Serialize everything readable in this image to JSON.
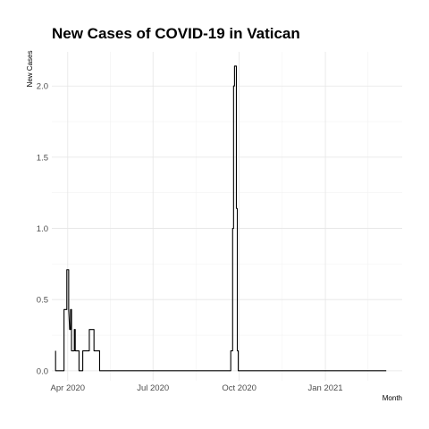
{
  "chart_data": {
    "type": "line",
    "title": "New Cases of COVID-19 in Vatican",
    "xlabel": "Month",
    "ylabel": "New Cases",
    "x_ticks": [
      {
        "label": "Apr 2020",
        "day": 0
      },
      {
        "label": "Jul 2020",
        "day": 91
      },
      {
        "label": "Oct 2020",
        "day": 183
      },
      {
        "label": "Jan 2021",
        "day": 275
      }
    ],
    "y_ticks": [
      "0.0",
      "0.5",
      "1.0",
      "1.5",
      "2.0"
    ],
    "xlim_days": [
      -17,
      357
    ],
    "ylim": [
      -0.07,
      2.24
    ],
    "grid": true,
    "series": [
      {
        "color": "#000000",
        "points": [
          [
            -13,
            0.14
          ],
          [
            -13,
            0.0
          ],
          [
            -4,
            0.0
          ],
          [
            -4,
            0.43
          ],
          [
            -1,
            0.43
          ],
          [
            -1,
            0.71
          ],
          [
            1,
            0.71
          ],
          [
            1,
            0.43
          ],
          [
            2,
            0.29
          ],
          [
            3,
            0.29
          ],
          [
            3,
            0.43
          ],
          [
            4,
            0.43
          ],
          [
            4,
            0.14
          ],
          [
            7,
            0.14
          ],
          [
            7,
            0.29
          ],
          [
            8,
            0.29
          ],
          [
            8,
            0.14
          ],
          [
            12,
            0.14
          ],
          [
            12,
            0.0
          ],
          [
            16,
            0.0
          ],
          [
            16,
            0.14
          ],
          [
            23,
            0.14
          ],
          [
            23,
            0.29
          ],
          [
            28,
            0.29
          ],
          [
            28,
            0.14
          ],
          [
            34,
            0.14
          ],
          [
            34,
            0.0
          ],
          [
            174,
            0.0
          ],
          [
            174,
            0.14
          ],
          [
            176,
            0.14
          ],
          [
            176,
            1.0
          ],
          [
            177,
            1.0
          ],
          [
            177,
            2.0
          ],
          [
            178,
            2.0
          ],
          [
            178,
            2.14
          ],
          [
            180,
            2.14
          ],
          [
            180,
            1.14
          ],
          [
            181,
            1.14
          ],
          [
            181,
            0.14
          ],
          [
            182,
            0.14
          ],
          [
            182,
            0.0
          ],
          [
            340,
            0.0
          ]
        ]
      }
    ]
  }
}
